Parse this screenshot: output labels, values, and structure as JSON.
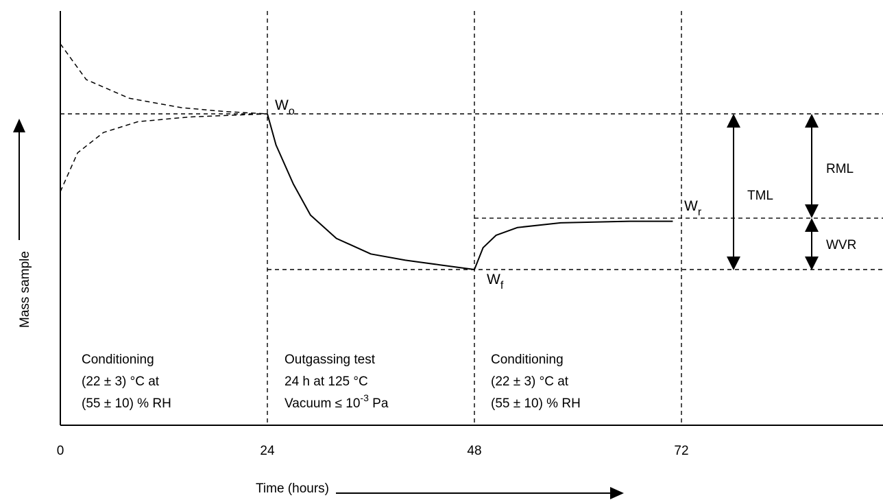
{
  "chart_data": {
    "type": "line",
    "title": "",
    "xlabel": "Time (hours)",
    "ylabel": "Mass sample",
    "xlim": [
      0,
      72
    ],
    "x_ticks": [
      "0",
      "24",
      "48",
      "72"
    ],
    "y_ticks": [],
    "grid": false,
    "legend": "none",
    "dashed_reference_lines": {
      "vertical_x": [
        24,
        48,
        72
      ],
      "horizontal_levels": [
        "Wo",
        "Wr",
        "Wf"
      ]
    },
    "series": [
      {
        "style": "dashed",
        "points": [
          [
            0,
            1.45
          ],
          [
            3,
            1.22
          ],
          [
            8,
            1.1
          ],
          [
            14,
            1.04
          ],
          [
            19,
            1.015
          ],
          [
            24,
            1.0
          ]
        ]
      },
      {
        "style": "dashed",
        "points": [
          [
            0,
            0.5
          ],
          [
            2,
            0.75
          ],
          [
            5,
            0.88
          ],
          [
            9,
            0.95
          ],
          [
            15,
            0.98
          ],
          [
            24,
            1.0
          ]
        ]
      },
      {
        "style": "solid",
        "points": [
          [
            24,
            1.0
          ],
          [
            25,
            0.8
          ],
          [
            27,
            0.55
          ],
          [
            29,
            0.35
          ],
          [
            32,
            0.2
          ],
          [
            36,
            0.1
          ],
          [
            40,
            0.06
          ],
          [
            44,
            0.03
          ],
          [
            48,
            0.0
          ]
        ]
      },
      {
        "style": "solid",
        "points": [
          [
            48,
            0.0
          ],
          [
            49,
            0.14
          ],
          [
            50.5,
            0.22
          ],
          [
            53,
            0.27
          ],
          [
            58,
            0.3
          ],
          [
            66,
            0.31
          ],
          [
            71,
            0.31
          ]
        ]
      }
    ],
    "point_labels": {
      "w0": {
        "main": "W",
        "sub": "o"
      },
      "wr": {
        "main": "W",
        "sub": "r"
      },
      "wf": {
        "main": "W",
        "sub": "f"
      }
    },
    "measures": {
      "tml": "TML",
      "rml": "RML",
      "wvr": "WVR"
    },
    "phases": [
      {
        "lines": [
          "Conditioning",
          "(22 ± 3) °C at",
          "(55 ± 10) % RH"
        ]
      },
      {
        "lines": [
          "Outgassing test",
          "24 h at 125 °C",
          "Vacuum ≤ 10",
          "-3",
          " Pa"
        ]
      },
      {
        "lines": [
          "Conditioning",
          "(22 ± 3) °C at",
          "(55 ± 10) % RH"
        ]
      }
    ]
  }
}
